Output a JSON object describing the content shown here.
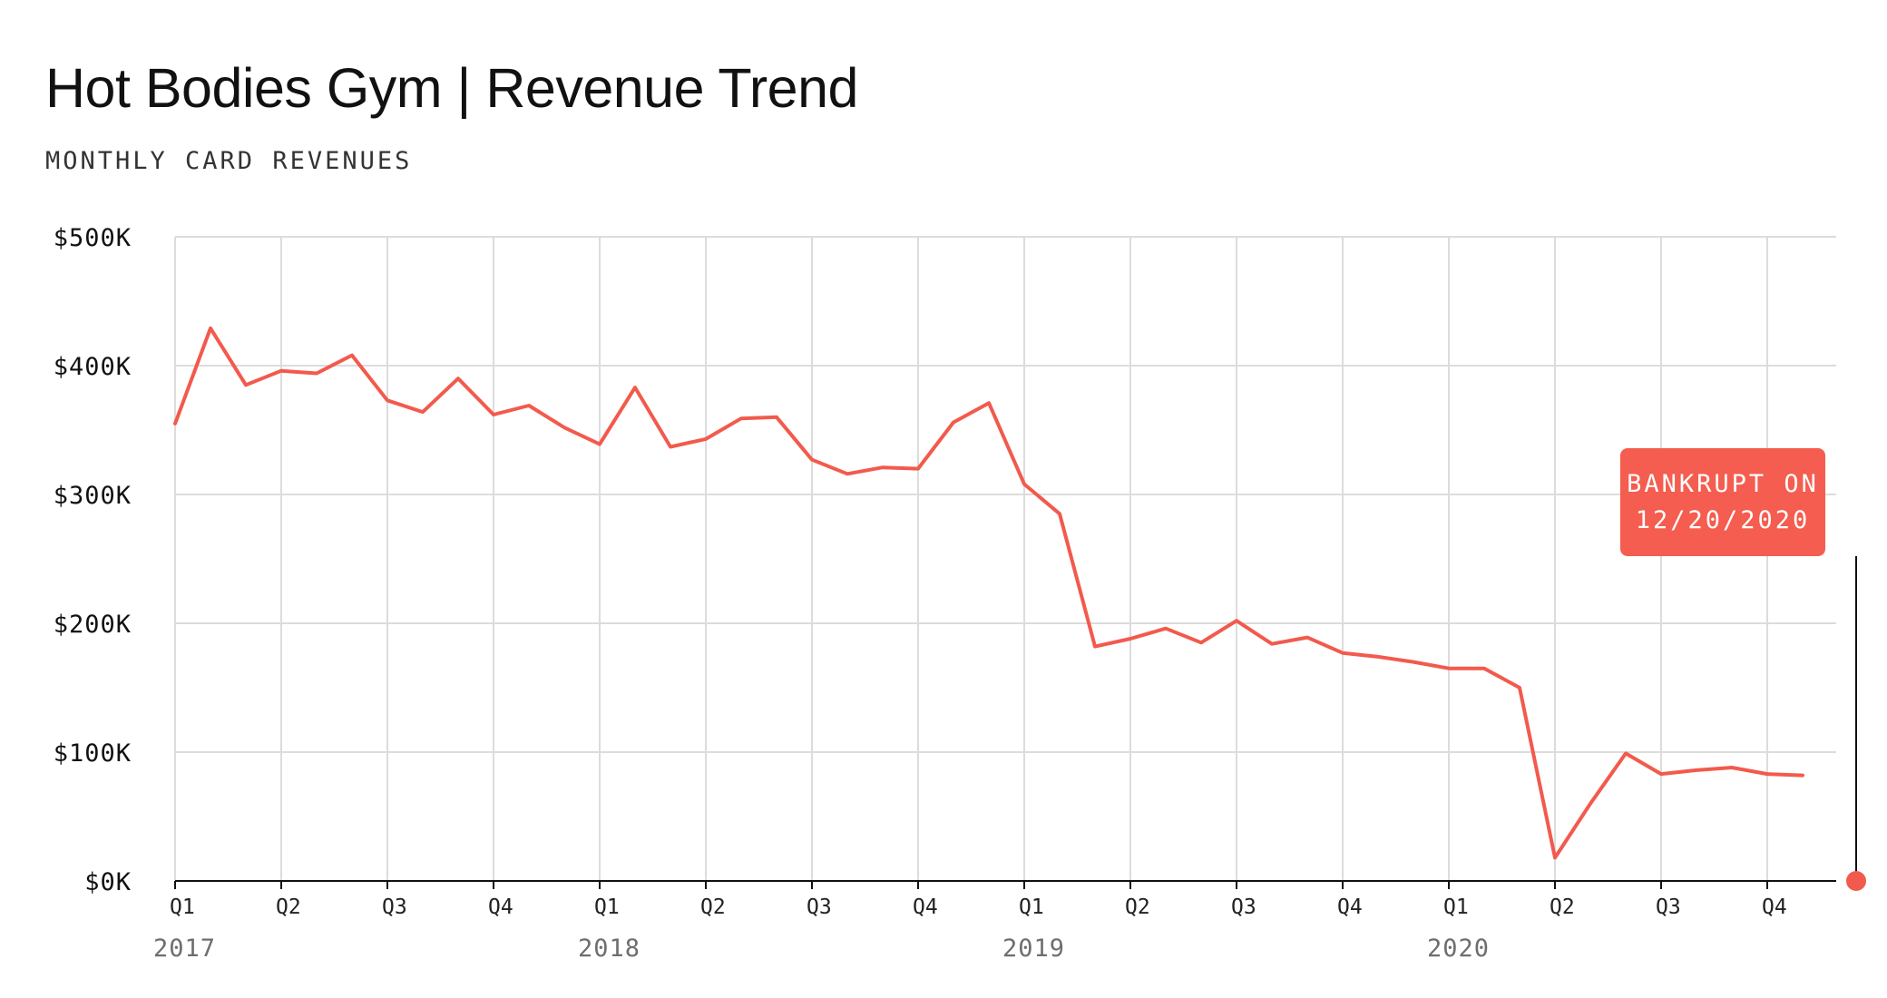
{
  "header": {
    "title": "Hot Bodies Gym | Revenue Trend",
    "subtitle": "MONTHLY CARD REVENUES"
  },
  "annotation": {
    "line1": "BANKRUPT ON",
    "line2": "12/20/2020",
    "date": "2020-12-20"
  },
  "colors": {
    "series": "#f25a4d",
    "callout": "#f45d4f",
    "grid": "#dcdcdc",
    "text": "#111111",
    "year_label": "#6e6e6e"
  },
  "chart_data": {
    "type": "line",
    "title": "Hot Bodies Gym | Revenue Trend",
    "subtitle": "MONTHLY CARD REVENUES",
    "ylabel": "",
    "xlabel": "",
    "ylim": [
      0,
      500000
    ],
    "xlim": [
      "2017-01",
      "2020-12"
    ],
    "y_ticks": [
      0,
      100000,
      200000,
      300000,
      400000,
      500000
    ],
    "y_tick_labels": [
      "$0K",
      "$100K",
      "$200K",
      "$300K",
      "$400K",
      "$500K"
    ],
    "x_tick_labels": [
      {
        "label": "Q1",
        "x": "2017-01"
      },
      {
        "label": "Q2",
        "x": "2017-04"
      },
      {
        "label": "Q3",
        "x": "2017-07"
      },
      {
        "label": "Q4",
        "x": "2017-10"
      },
      {
        "label": "Q1",
        "x": "2018-01"
      },
      {
        "label": "Q2",
        "x": "2018-04"
      },
      {
        "label": "Q3",
        "x": "2018-07"
      },
      {
        "label": "Q4",
        "x": "2018-10"
      },
      {
        "label": "Q1",
        "x": "2019-01"
      },
      {
        "label": "Q2",
        "x": "2019-04"
      },
      {
        "label": "Q3",
        "x": "2019-07"
      },
      {
        "label": "Q4",
        "x": "2019-10"
      },
      {
        "label": "Q1",
        "x": "2020-01"
      },
      {
        "label": "Q2",
        "x": "2020-04"
      },
      {
        "label": "Q3",
        "x": "2020-07"
      },
      {
        "label": "Q4",
        "x": "2020-10"
      }
    ],
    "year_labels": [
      {
        "label": "2017",
        "x": "2017-01"
      },
      {
        "label": "2018",
        "x": "2018-01"
      },
      {
        "label": "2019",
        "x": "2019-01"
      },
      {
        "label": "2020",
        "x": "2020-01"
      }
    ],
    "grid": true,
    "legend": "none",
    "series": [
      {
        "x": [
          "2017-01",
          "2017-02",
          "2017-03",
          "2017-04",
          "2017-05",
          "2017-06",
          "2017-07",
          "2017-08",
          "2017-09",
          "2017-10",
          "2017-11",
          "2017-12",
          "2018-01",
          "2018-02",
          "2018-03",
          "2018-04",
          "2018-05",
          "2018-06",
          "2018-07",
          "2018-08",
          "2018-09",
          "2018-10",
          "2018-11",
          "2018-12",
          "2019-01",
          "2019-02",
          "2019-03",
          "2019-04",
          "2019-05",
          "2019-06",
          "2019-07",
          "2019-08",
          "2019-09",
          "2019-10",
          "2019-11",
          "2019-12",
          "2020-01",
          "2020-02",
          "2020-03",
          "2020-04",
          "2020-05",
          "2020-06",
          "2020-07",
          "2020-08",
          "2020-09",
          "2020-10",
          "2020-11",
          "2020-12"
        ],
        "values": [
          355000,
          429000,
          385000,
          396000,
          394000,
          408000,
          373000,
          364000,
          390000,
          362000,
          369000,
          352000,
          339000,
          383000,
          337000,
          343000,
          359000,
          360000,
          327000,
          316000,
          321000,
          320000,
          356000,
          371000,
          308000,
          285000,
          182000,
          188000,
          196000,
          185000,
          202000,
          184000,
          189000,
          177000,
          174000,
          170000,
          165000,
          165000,
          150000,
          18000,
          60000,
          99000,
          83000,
          86000,
          88000,
          83000,
          82000,
          0
        ]
      }
    ]
  }
}
